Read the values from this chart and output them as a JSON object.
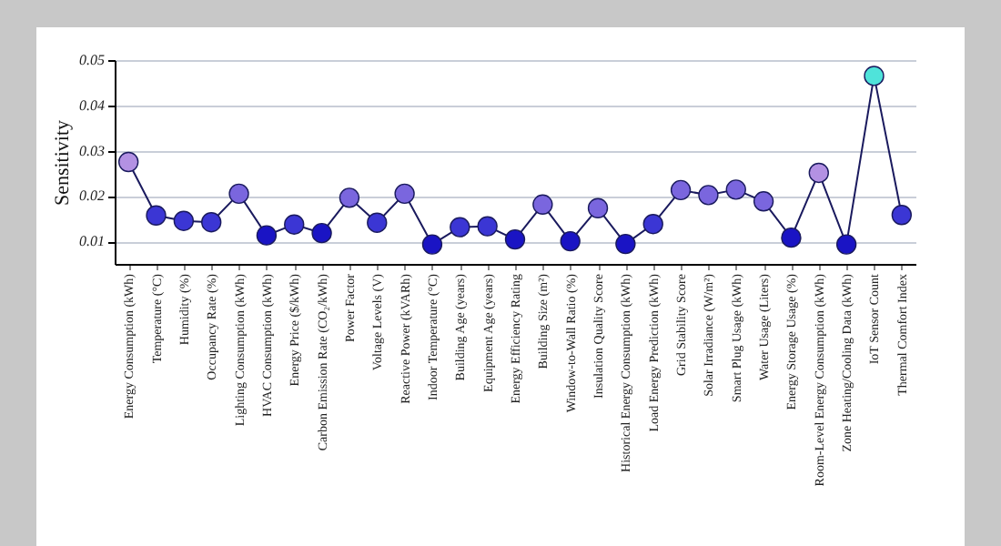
{
  "chart_data": {
    "type": "line",
    "ylabel": "Sensitivity",
    "categories": [
      "Energy Consumption (kWh)",
      "Temperature (°C)",
      "Humidity (%)",
      "Occupancy Rate (%)",
      "Lighting Consumption (kWh)",
      "HVAC Consumption (kWh)",
      "Energy Price ($/kWh)",
      "Carbon Emission Rate (CO₂/kWh)",
      "Power Factor",
      "Voltage Levels (V)",
      "Reactive Power (kVARh)",
      "Indoor Temperature (°C)",
      "Building Age (years)",
      "Equipment Age (years)",
      "Energy Efficiency Rating",
      "Building Size (m²)",
      "Window-to-Wall Ratio (%)",
      "Insulation Quality Score",
      "Historical Energy Consumption (kWh)",
      "Load Energy Prediction (kWh)",
      "Grid Stability Score",
      "Solar Irradiance (W/m²)",
      "Smart Plug Usage (kWh)",
      "Water Usage (Liters)",
      "Energy Storage Usage (%)",
      "Room-Level Energy Consumption (kWh)",
      "Zone Heating/Cooling Data (kWh)",
      "IoT Sensor Count",
      "Thermal Comfort Index"
    ],
    "series": [
      {
        "color": "#1a1a5e",
        "values": [
          0.0275,
          0.0157,
          0.0145,
          0.0142,
          0.0205,
          0.0113,
          0.0137,
          0.0118,
          0.0196,
          0.0141,
          0.0205,
          0.0093,
          0.0131,
          0.0133,
          0.0104,
          0.0181,
          0.01,
          0.0173,
          0.0094,
          0.0138,
          0.0213,
          0.0202,
          0.0214,
          0.0188,
          0.0108,
          0.0251,
          0.0093,
          0.0465,
          0.0158
        ],
        "colors": [
          "#b391e3",
          "#3b36d4",
          "#3b36d4",
          "#3b36d4",
          "#7a66de",
          "#1a14c4",
          "#3b36d4",
          "#1a14c4",
          "#7a66de",
          "#3b36d4",
          "#7a66de",
          "#1a14c4",
          "#3b36d4",
          "#3b36d4",
          "#1a14c4",
          "#7a66de",
          "#1a14c4",
          "#7a66de",
          "#1a14c4",
          "#3b36d4",
          "#7a66de",
          "#7a66de",
          "#7a66de",
          "#7a66de",
          "#1a14c4",
          "#b391e3",
          "#1a14c4",
          "#4fe3da",
          "#3b36d4"
        ]
      }
    ],
    "ylim": [
      0.005,
      0.05
    ],
    "yticks": [
      0.01,
      0.02,
      0.03,
      0.04,
      0.05
    ],
    "grid": "y",
    "marker": "circle"
  }
}
